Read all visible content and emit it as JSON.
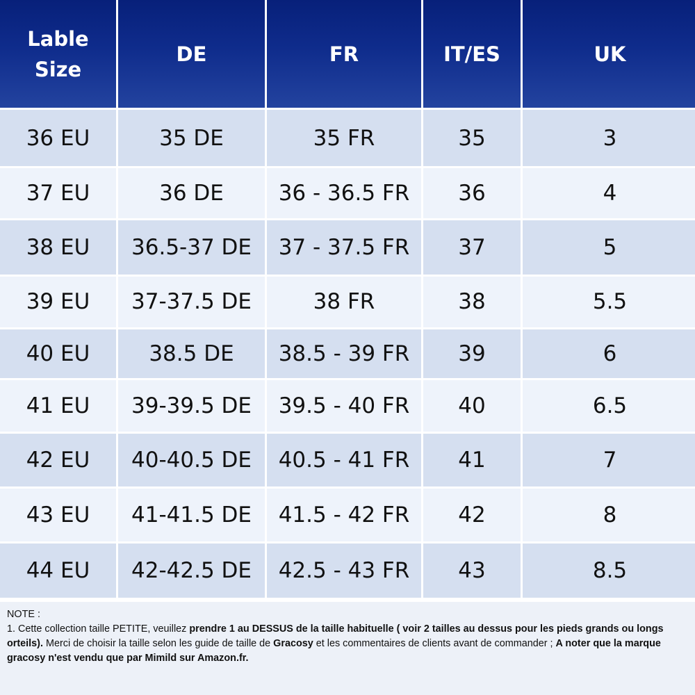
{
  "headers": [
    "Lable\nSize",
    "DE",
    "FR",
    "IT/ES",
    "UK"
  ],
  "rows": [
    [
      "36 EU",
      "35 DE",
      "35 FR",
      "35",
      "3"
    ],
    [
      "37 EU",
      "36 DE",
      "36 - 36.5 FR",
      "36",
      "4"
    ],
    [
      "38 EU",
      "36.5-37 DE",
      "37 - 37.5 FR",
      "37",
      "5"
    ],
    [
      "39 EU",
      "37-37.5 DE",
      "38 FR",
      "38",
      "5.5"
    ],
    [
      "40 EU",
      "38.5 DE",
      "38.5 - 39 FR",
      "39",
      "6"
    ],
    [
      "41 EU",
      "39-39.5 DE",
      "39.5 - 40 FR",
      "40",
      "6.5"
    ],
    [
      "42 EU",
      "40-40.5 DE",
      "40.5 - 41 FR",
      "41",
      "7"
    ],
    [
      "43 EU",
      "41-41.5 DE",
      "41.5 - 42 FR",
      "42",
      "8"
    ],
    [
      "44 EU",
      "42-42.5 DE",
      "42.5 - 43 FR",
      "43",
      "8.5"
    ]
  ],
  "note": {
    "title": "NOTE :",
    "p1": "1. Cette collection taille PETITE, veuillez ",
    "b1": "prendre 1 au DESSUS  de la taille habituelle ( voir 2 tailles au dessus pour les pieds grands ou longs orteils).",
    "p2": "  Merci de choisir la taille selon les guide de taille de ",
    "b2": "Gracosy",
    "p3": " et  les commentaires de clients avant de commander ;  ",
    "b3": "A noter que la marque gracosy n'est vendu que par Mimild sur Amazon.fr."
  },
  "colors": {
    "header_top": "#07207a",
    "header_bottom": "#23439f",
    "row_dark": "#d5dff0",
    "row_light": "#eef3fb",
    "note_bg": "#edf1f8"
  }
}
